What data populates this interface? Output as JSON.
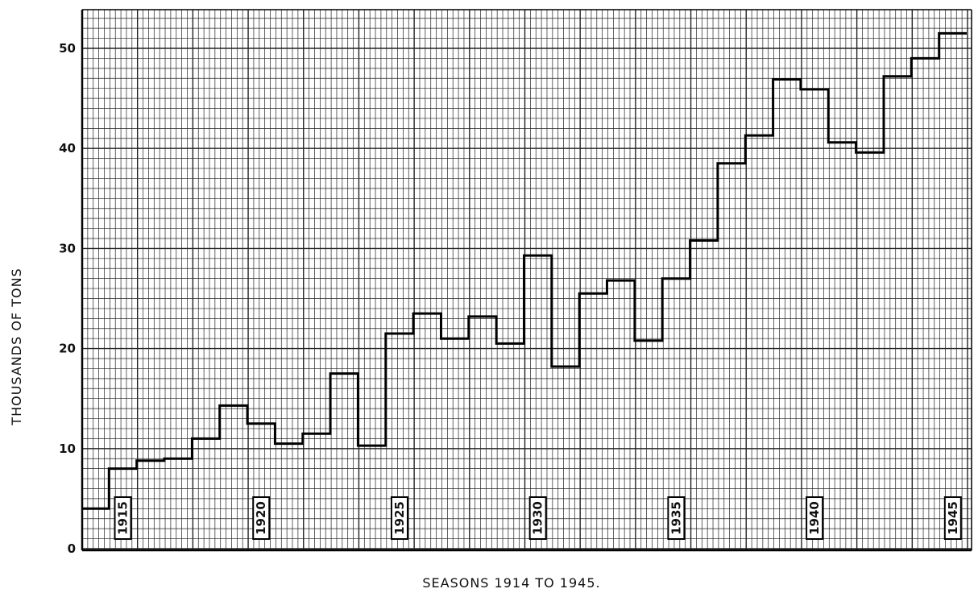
{
  "chart_data": {
    "type": "line",
    "step": true,
    "title": "",
    "xlabel": "SEASONS 1914 TO 1945.",
    "ylabel": "THOUSANDS OF TONS",
    "ylim": [
      0,
      52
    ],
    "yticks": [
      0,
      10,
      20,
      30,
      40,
      50
    ],
    "year_markers": [
      "1915",
      "1920",
      "1925",
      "1930",
      "1935",
      "1940",
      "1945"
    ],
    "grid": true,
    "series": [
      {
        "x": [
          1914,
          1915,
          1916,
          1917,
          1918,
          1919,
          1920,
          1921,
          1922,
          1923,
          1924,
          1925,
          1926,
          1927,
          1928,
          1929,
          1930,
          1931,
          1932,
          1933,
          1934,
          1935,
          1936,
          1937,
          1938,
          1939,
          1940,
          1941,
          1942,
          1943,
          1944,
          1945
        ],
        "values": [
          4.0,
          8.0,
          8.8,
          9.0,
          11.0,
          14.3,
          12.5,
          10.5,
          11.5,
          17.5,
          10.3,
          21.5,
          23.5,
          21.0,
          23.2,
          20.5,
          29.3,
          18.2,
          25.5,
          26.8,
          20.8,
          27.0,
          30.8,
          38.5,
          41.3,
          46.9,
          45.9,
          40.6,
          39.6,
          47.2,
          49.0,
          51.5
        ]
      }
    ]
  }
}
